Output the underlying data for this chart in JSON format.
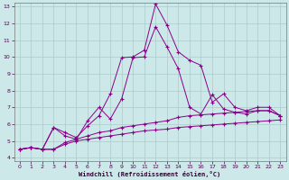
{
  "xlabel": "Windchill (Refroidissement éolien,°C)",
  "bg_color": "#cce8e8",
  "grid_color": "#aacccc",
  "line_color": "#880088",
  "xlim": [
    -0.5,
    23.5
  ],
  "ylim": [
    3.8,
    13.2
  ],
  "xticks": [
    0,
    1,
    2,
    3,
    4,
    5,
    6,
    7,
    8,
    9,
    10,
    11,
    12,
    13,
    14,
    15,
    16,
    17,
    18,
    19,
    20,
    21,
    22,
    23
  ],
  "yticks": [
    4,
    5,
    6,
    7,
    8,
    9,
    10,
    11,
    12,
    13
  ],
  "line1_x": [
    0,
    1,
    2,
    3,
    4,
    5,
    6,
    7,
    8,
    9,
    10,
    11,
    12,
    13,
    14,
    15,
    16,
    17,
    18,
    19,
    20,
    21,
    22,
    23
  ],
  "line1_y": [
    4.5,
    4.6,
    4.5,
    4.5,
    4.8,
    5.0,
    5.1,
    5.2,
    5.3,
    5.4,
    5.5,
    5.6,
    5.65,
    5.7,
    5.8,
    5.85,
    5.9,
    5.95,
    6.0,
    6.05,
    6.1,
    6.15,
    6.2,
    6.25
  ],
  "line2_x": [
    0,
    1,
    2,
    3,
    4,
    5,
    6,
    7,
    8,
    9,
    10,
    11,
    12,
    13,
    14,
    15,
    16,
    17,
    18,
    19,
    20,
    21,
    22,
    23
  ],
  "line2_y": [
    4.5,
    4.6,
    4.5,
    4.5,
    4.9,
    5.1,
    5.3,
    5.5,
    5.6,
    5.8,
    5.9,
    6.0,
    6.1,
    6.2,
    6.4,
    6.5,
    6.55,
    6.6,
    6.65,
    6.7,
    6.75,
    6.8,
    6.8,
    6.5
  ],
  "line3_x": [
    0,
    1,
    2,
    3,
    4,
    5,
    6,
    7,
    8,
    9,
    10,
    11,
    12,
    13,
    14,
    15,
    16,
    17,
    18,
    19,
    20,
    21,
    22,
    23
  ],
  "line3_y": [
    4.5,
    4.6,
    4.5,
    5.8,
    5.5,
    5.2,
    5.9,
    6.5,
    7.8,
    9.95,
    10.0,
    10.4,
    13.15,
    11.9,
    10.3,
    9.8,
    9.5,
    7.3,
    7.8,
    7.0,
    6.8,
    7.0,
    7.0,
    6.5
  ],
  "line4_x": [
    0,
    1,
    2,
    3,
    4,
    5,
    6,
    7,
    8,
    9,
    10,
    11,
    12,
    13,
    14,
    15,
    16,
    17,
    18,
    19,
    20,
    21,
    22,
    23
  ],
  "line4_y": [
    4.5,
    4.6,
    4.5,
    5.8,
    5.3,
    5.1,
    6.2,
    7.0,
    6.3,
    7.5,
    9.95,
    10.0,
    11.8,
    10.6,
    9.3,
    7.0,
    6.6,
    7.75,
    6.9,
    6.7,
    6.6,
    6.8,
    6.8,
    6.5
  ]
}
